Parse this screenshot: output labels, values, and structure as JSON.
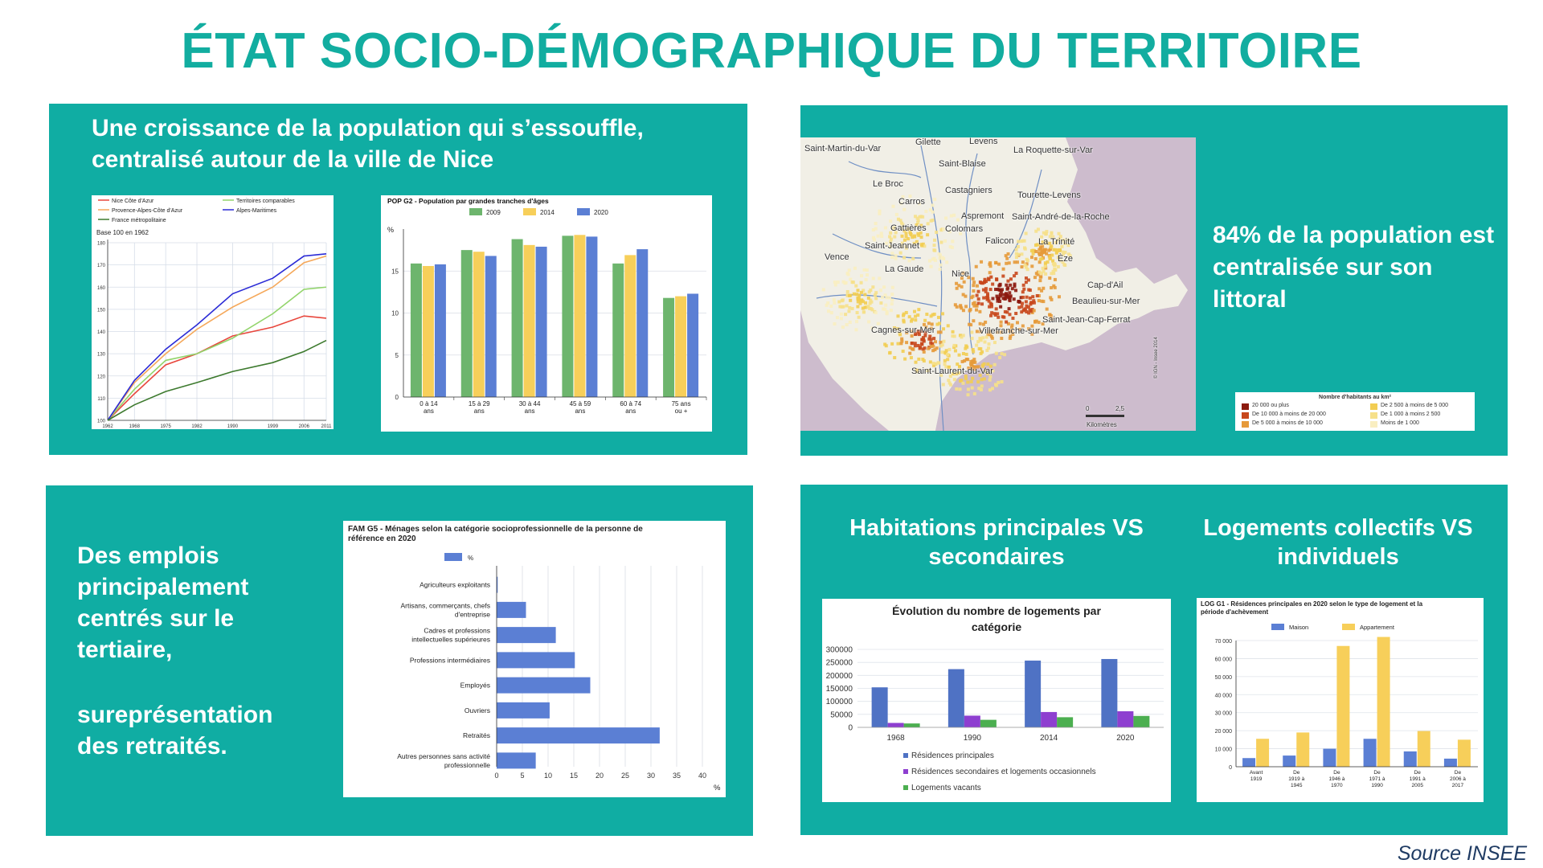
{
  "title": "ÉTAT SOCIO-DÉMOGRAPHIQUE DU TERRITOIRE",
  "source": "Source INSEE",
  "panels": {
    "population": {
      "heading": "Une croissance de la population qui s’essouffle, centralisé autour de la ville de Nice"
    },
    "map": {
      "text": "84% de la population est centralisée sur son littoral"
    },
    "jobs": {
      "text1": "Des emplois principalement centrés sur le tertiaire,",
      "text2": "sureprésentation des retraités."
    },
    "housing": {
      "heading1": "Habitations principales VS secondaires",
      "heading2": "Logements collectifs VS individuels"
    }
  },
  "map": {
    "labels": [
      "Levens",
      "Gilette",
      "Saint-Martin-du-Var",
      "La Roquette-sur-Var",
      "Saint-Blaise",
      "Le Broc",
      "Castagniers",
      "Tourette-Levens",
      "Carros",
      "Aspremont",
      "Saint-André-de-la-Roche",
      "Gattières",
      "Colomars",
      "Falicon",
      "La Trinité",
      "Saint-Jeannet",
      "Vence",
      "Èze",
      "La Gaude",
      "Nice",
      "Cap-d'Ail",
      "Beaulieu-sur-Mer",
      "Saint-Jean-Cap-Ferrat",
      "Villefranche-sur-Mer",
      "Cagnes-sur-Mer",
      "Saint-Laurent-du-Var"
    ],
    "scale_values": [
      "0",
      "2,5"
    ],
    "scale_unit": "Kilomètres",
    "credit": "© IGN - Insee 2014",
    "legend_title": "Nombre d'habitants au km²",
    "legend": [
      {
        "label": "20 000  ou plus",
        "color": "#8c1a0e"
      },
      {
        "label": "De 10 000 à moins de 20 000",
        "color": "#c8471c"
      },
      {
        "label": "De 5 000 à moins de 10 000",
        "color": "#e69a3a"
      },
      {
        "label": "De 2 500 à moins de 5 000",
        "color": "#f2cd52"
      },
      {
        "label": "De 1 000 à moins 2 500",
        "color": "#f6e08a"
      },
      {
        "label": "Moins de 1 000",
        "color": "#f9eec0"
      }
    ]
  },
  "chart_data": [
    {
      "type": "line",
      "title": "",
      "subtitle": "Base 100 en 1962",
      "x": [
        1962,
        1968,
        1975,
        1982,
        1990,
        1999,
        2006,
        2011
      ],
      "ylim": [
        100,
        180
      ],
      "yticks": [
        100,
        110,
        120,
        130,
        140,
        150,
        160,
        170,
        180
      ],
      "legend_position": "top",
      "series": [
        {
          "name": "Nice Côte d'Azur",
          "color": "#e8463c",
          "values": [
            100,
            112,
            125,
            130,
            138,
            142,
            147,
            146
          ]
        },
        {
          "name": "Territoires comparables",
          "color": "#92d46b",
          "values": [
            100,
            114,
            127,
            130,
            137,
            148,
            159,
            160
          ]
        },
        {
          "name": "Provence-Alpes-Côte d'Azur",
          "color": "#f5a85a",
          "values": [
            100,
            117,
            130,
            141,
            151,
            160,
            171,
            174
          ]
        },
        {
          "name": "Alpes-Maritimes",
          "color": "#2b2bd6",
          "values": [
            100,
            118,
            132,
            143,
            157,
            164,
            174,
            175
          ]
        },
        {
          "name": "France métropolitaine",
          "color": "#3d7a2e",
          "values": [
            100,
            107,
            113,
            117,
            122,
            126,
            131,
            136
          ]
        }
      ]
    },
    {
      "type": "bar",
      "title": "POP G2 - Population par grandes tranches d'âges",
      "ylabel": "%",
      "categories": [
        "0 à 14 ans",
        "15 à 29 ans",
        "30 à 44 ans",
        "45 à 59 ans",
        "60 à 74 ans",
        "75 ans ou +"
      ],
      "ylim": [
        0,
        20
      ],
      "yticks": [
        0,
        5,
        10,
        15
      ],
      "series": [
        {
          "name": "2009",
          "color": "#6db56d",
          "values": [
            15.9,
            17.5,
            18.8,
            19.2,
            15.9,
            11.8
          ]
        },
        {
          "name": "2014",
          "color": "#f7cf5a",
          "values": [
            15.6,
            17.3,
            18.1,
            19.3,
            16.9,
            12.0
          ]
        },
        {
          "name": "2020",
          "color": "#5b7fd4",
          "values": [
            15.8,
            16.8,
            17.9,
            19.1,
            17.6,
            12.3
          ]
        }
      ]
    },
    {
      "type": "bar",
      "orientation": "horizontal",
      "title": "FAM G5 - Ménages selon la catégorie socioprofessionnelle de la personne de référence en 2020",
      "xlabel": "%",
      "categories": [
        "Agriculteurs exploitants",
        "Artisans, commerçants, chefs d'entreprise",
        "Cadres et professions intellectuelles supérieures",
        "Professions intermédiaires",
        "Employés",
        "Ouvriers",
        "Retraités",
        "Autres personnes sans activité professionnelle"
      ],
      "xlim": [
        0,
        40
      ],
      "xticks": [
        0,
        5,
        10,
        15,
        20,
        25,
        30,
        35,
        40
      ],
      "series": [
        {
          "name": "%",
          "color": "#5b7fd4",
          "values": [
            0.2,
            5.7,
            11.5,
            15.2,
            18.2,
            10.3,
            31.7,
            7.6
          ]
        }
      ]
    },
    {
      "type": "bar",
      "title": "Évolution du nombre de logements par catégorie",
      "categories": [
        "1968",
        "1990",
        "2014",
        "2020"
      ],
      "ylim": [
        0,
        300000
      ],
      "yticks": [
        0,
        50000,
        100000,
        150000,
        200000,
        250000,
        300000
      ],
      "legend_position": "bottom",
      "series": [
        {
          "name": "Résidences principales",
          "color": "#4f72c4",
          "values": [
            154000,
            224000,
            257000,
            263000
          ]
        },
        {
          "name": "Résidences secondaires et logements occasionnels",
          "color": "#8e3fd0",
          "values": [
            17000,
            45000,
            59000,
            62000
          ]
        },
        {
          "name": "Logements vacants",
          "color": "#4caf50",
          "values": [
            15000,
            29000,
            39000,
            44000
          ]
        }
      ]
    },
    {
      "type": "bar",
      "title": "LOG G1 - Résidences principales en 2020 selon le type de logement et la période d'achèvement",
      "categories": [
        "Avant 1919",
        "De 1919 à 1945",
        "De 1946 à 1970",
        "De 1971 à 1990",
        "De 1991 à 2005",
        "De 2006 à 2017"
      ],
      "ylim": [
        0,
        70000
      ],
      "yticks": [
        0,
        10000,
        20000,
        30000,
        40000,
        50000,
        60000,
        70000
      ],
      "ytick_labels": [
        "0",
        "10 000",
        "20 000",
        "30 000",
        "40 000",
        "50 000",
        "60 000",
        "70 000"
      ],
      "series": [
        {
          "name": "Maison",
          "color": "#5b7fd4",
          "values": [
            4800,
            6200,
            10000,
            15500,
            8500,
            4500
          ]
        },
        {
          "name": "Appartement",
          "color": "#f7cf5a",
          "values": [
            15500,
            19000,
            67000,
            72000,
            19800,
            15000
          ]
        }
      ]
    }
  ]
}
